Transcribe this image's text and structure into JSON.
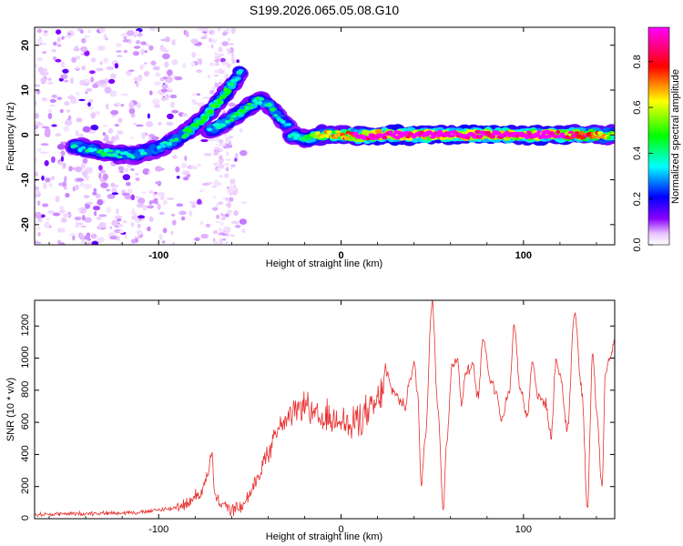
{
  "chart_data": [
    {
      "type": "heatmap",
      "title": "S199.2026.065.05.08.G10",
      "xlabel": "Height of straight line (km)",
      "ylabel": "Frequency (Hz)",
      "xlim": [
        -168,
        150
      ],
      "ylim": [
        -24.5,
        24
      ],
      "xticks": [
        -100,
        0,
        100
      ],
      "xtick_labels": [
        "-100",
        "0",
        "100"
      ],
      "yticks": [
        -20,
        -10,
        0,
        10,
        20
      ],
      "ytick_labels": [
        "-20",
        "-10",
        "0",
        "10",
        "20"
      ],
      "colorbar": {
        "label": "Normalized spectral amplitude",
        "range": [
          0,
          0.95
        ],
        "ticks": [
          0,
          0.2,
          0.4,
          0.6,
          0.8
        ],
        "tick_labels": [
          "0.0",
          "0.2",
          "0.4",
          "0.6",
          "0.8"
        ],
        "colors": [
          "#ffffff",
          "#8a00ff",
          "#0000ff",
          "#00ffff",
          "#00ff00",
          "#ffff00",
          "#ff0000",
          "#ff00ff"
        ]
      },
      "ridges": [
        {
          "name": "main ridge",
          "x": [
            -147,
            -130,
            -115,
            -100,
            -90,
            -80,
            -70,
            -62,
            -55
          ],
          "y": [
            -2.5,
            -4,
            -4.5,
            -3,
            -1,
            2,
            6,
            10,
            14
          ],
          "amplitude": [
            0.25,
            0.3,
            0.25,
            0.25,
            0.3,
            0.35,
            0.4,
            0.35,
            0.25
          ]
        },
        {
          "name": "secondary ridge",
          "x": [
            -72,
            -62,
            -52,
            -44,
            -38,
            -32,
            -27
          ],
          "y": [
            1,
            3,
            6,
            8,
            6,
            3,
            1
          ],
          "amplitude": [
            0.25,
            0.3,
            0.35,
            0.3,
            0.3,
            0.25,
            0.25
          ]
        },
        {
          "name": "flat line",
          "x": [
            -28,
            -20,
            -10,
            0,
            10,
            20,
            40,
            60,
            80,
            100,
            120,
            140,
            150
          ],
          "y": [
            0,
            -1,
            0,
            0,
            -0.3,
            0,
            0,
            0,
            0,
            0,
            0,
            0,
            0
          ],
          "amplitude": [
            0.25,
            0.3,
            0.6,
            0.55,
            0.9,
            0.95,
            0.95,
            0.95,
            0.95,
            0.95,
            0.9,
            0.6,
            0.45
          ]
        }
      ]
    },
    {
      "type": "line",
      "xlabel": "Height of straight line (km)",
      "ylabel": "SNR (10 * v/v)",
      "xlim": [
        -168,
        150
      ],
      "ylim": [
        0,
        1360
      ],
      "xticks": [
        -100,
        0,
        100
      ],
      "xtick_labels": [
        "-100",
        "0",
        "100"
      ],
      "yticks": [
        0,
        200,
        400,
        600,
        800,
        1000,
        1200
      ],
      "ytick_labels": [
        "0",
        "200",
        "400",
        "600",
        "800",
        "1000",
        "1200"
      ],
      "series": [
        {
          "name": "SNR",
          "color": "#e83030",
          "x": [
            -168,
            -150,
            -130,
            -110,
            -95,
            -85,
            -78,
            -73,
            -71,
            -69,
            -66,
            -60,
            -55,
            -50,
            -45,
            -40,
            -35,
            -30,
            -25,
            -20,
            -15,
            -12,
            -10,
            -8,
            -5,
            0,
            5,
            10,
            15,
            20,
            25,
            28,
            30,
            33,
            35,
            38,
            40,
            42,
            44,
            46,
            50,
            53,
            56,
            58,
            61,
            64,
            66,
            68,
            72,
            75,
            78,
            82,
            85,
            88,
            92,
            95,
            98,
            102,
            105,
            108,
            112,
            115,
            118,
            120,
            124,
            128,
            132,
            135,
            138,
            140,
            143,
            145,
            147,
            150
          ],
          "y": [
            25,
            30,
            35,
            40,
            60,
            90,
            150,
            260,
            410,
            130,
            90,
            60,
            70,
            150,
            280,
            420,
            560,
            600,
            660,
            720,
            640,
            620,
            580,
            640,
            600,
            640,
            560,
            640,
            650,
            720,
            900,
            800,
            780,
            720,
            700,
            880,
            960,
            780,
            200,
            500,
            1360,
            700,
            70,
            500,
            960,
            1000,
            700,
            900,
            950,
            760,
            1120,
            860,
            800,
            620,
            780,
            1200,
            820,
            640,
            980,
            760,
            720,
            520,
            980,
            900,
            560,
            1280,
            800,
            80,
            1040,
            680,
            200,
            920,
            1000,
            1100
          ]
        }
      ]
    }
  ]
}
